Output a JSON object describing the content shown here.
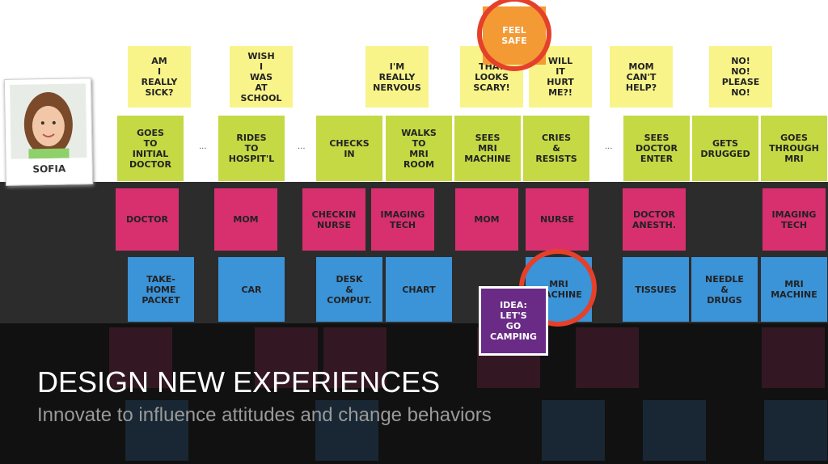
{
  "persona": {
    "name": "SOFIA"
  },
  "thoughts": [
    "AM I REALLY SICK?",
    "WISH I WAS AT SCHOOL",
    "I'M REALLY NERVOUS",
    "THAT LOOKS SCARY!",
    "WILL IT HURT ME?!",
    "MOM CAN'T HELP?",
    "NO! NO! PLEASE NO!"
  ],
  "goal": "FEEL SAFE",
  "actions": [
    "GOES TO INITIAL DOCTOR",
    "RIDES TO HOSPIT'L",
    "CHECKS IN",
    "WALKS TO MRI ROOM",
    "SEES MRI MACHINE",
    "CRIES & RESISTS",
    "SEES DOCTOR ENTER",
    "GETS DRUGGED",
    "GOES THROUGH MRI"
  ],
  "gaps": [
    "...",
    "...",
    "..."
  ],
  "people": [
    "DOCTOR",
    "MOM",
    "CHECKIN NURSE",
    "IMAGING TECH",
    "MOM",
    "NURSE",
    "DOCTOR ANESTH.",
    "IMAGING TECH"
  ],
  "things": [
    "TAKE-HOME PACKET",
    "CAR",
    "DESK & COMPUT.",
    "CHART",
    "MRI MACHINE",
    "TISSUES",
    "NEEDLE & DRUGS",
    "MRI MACHINE"
  ],
  "idea": "IDEA: LET'S GO CAMPING",
  "headline": "DESIGN NEW EXPERIENCES",
  "subheadline": "Innovate to influence attitudes and change behaviors"
}
